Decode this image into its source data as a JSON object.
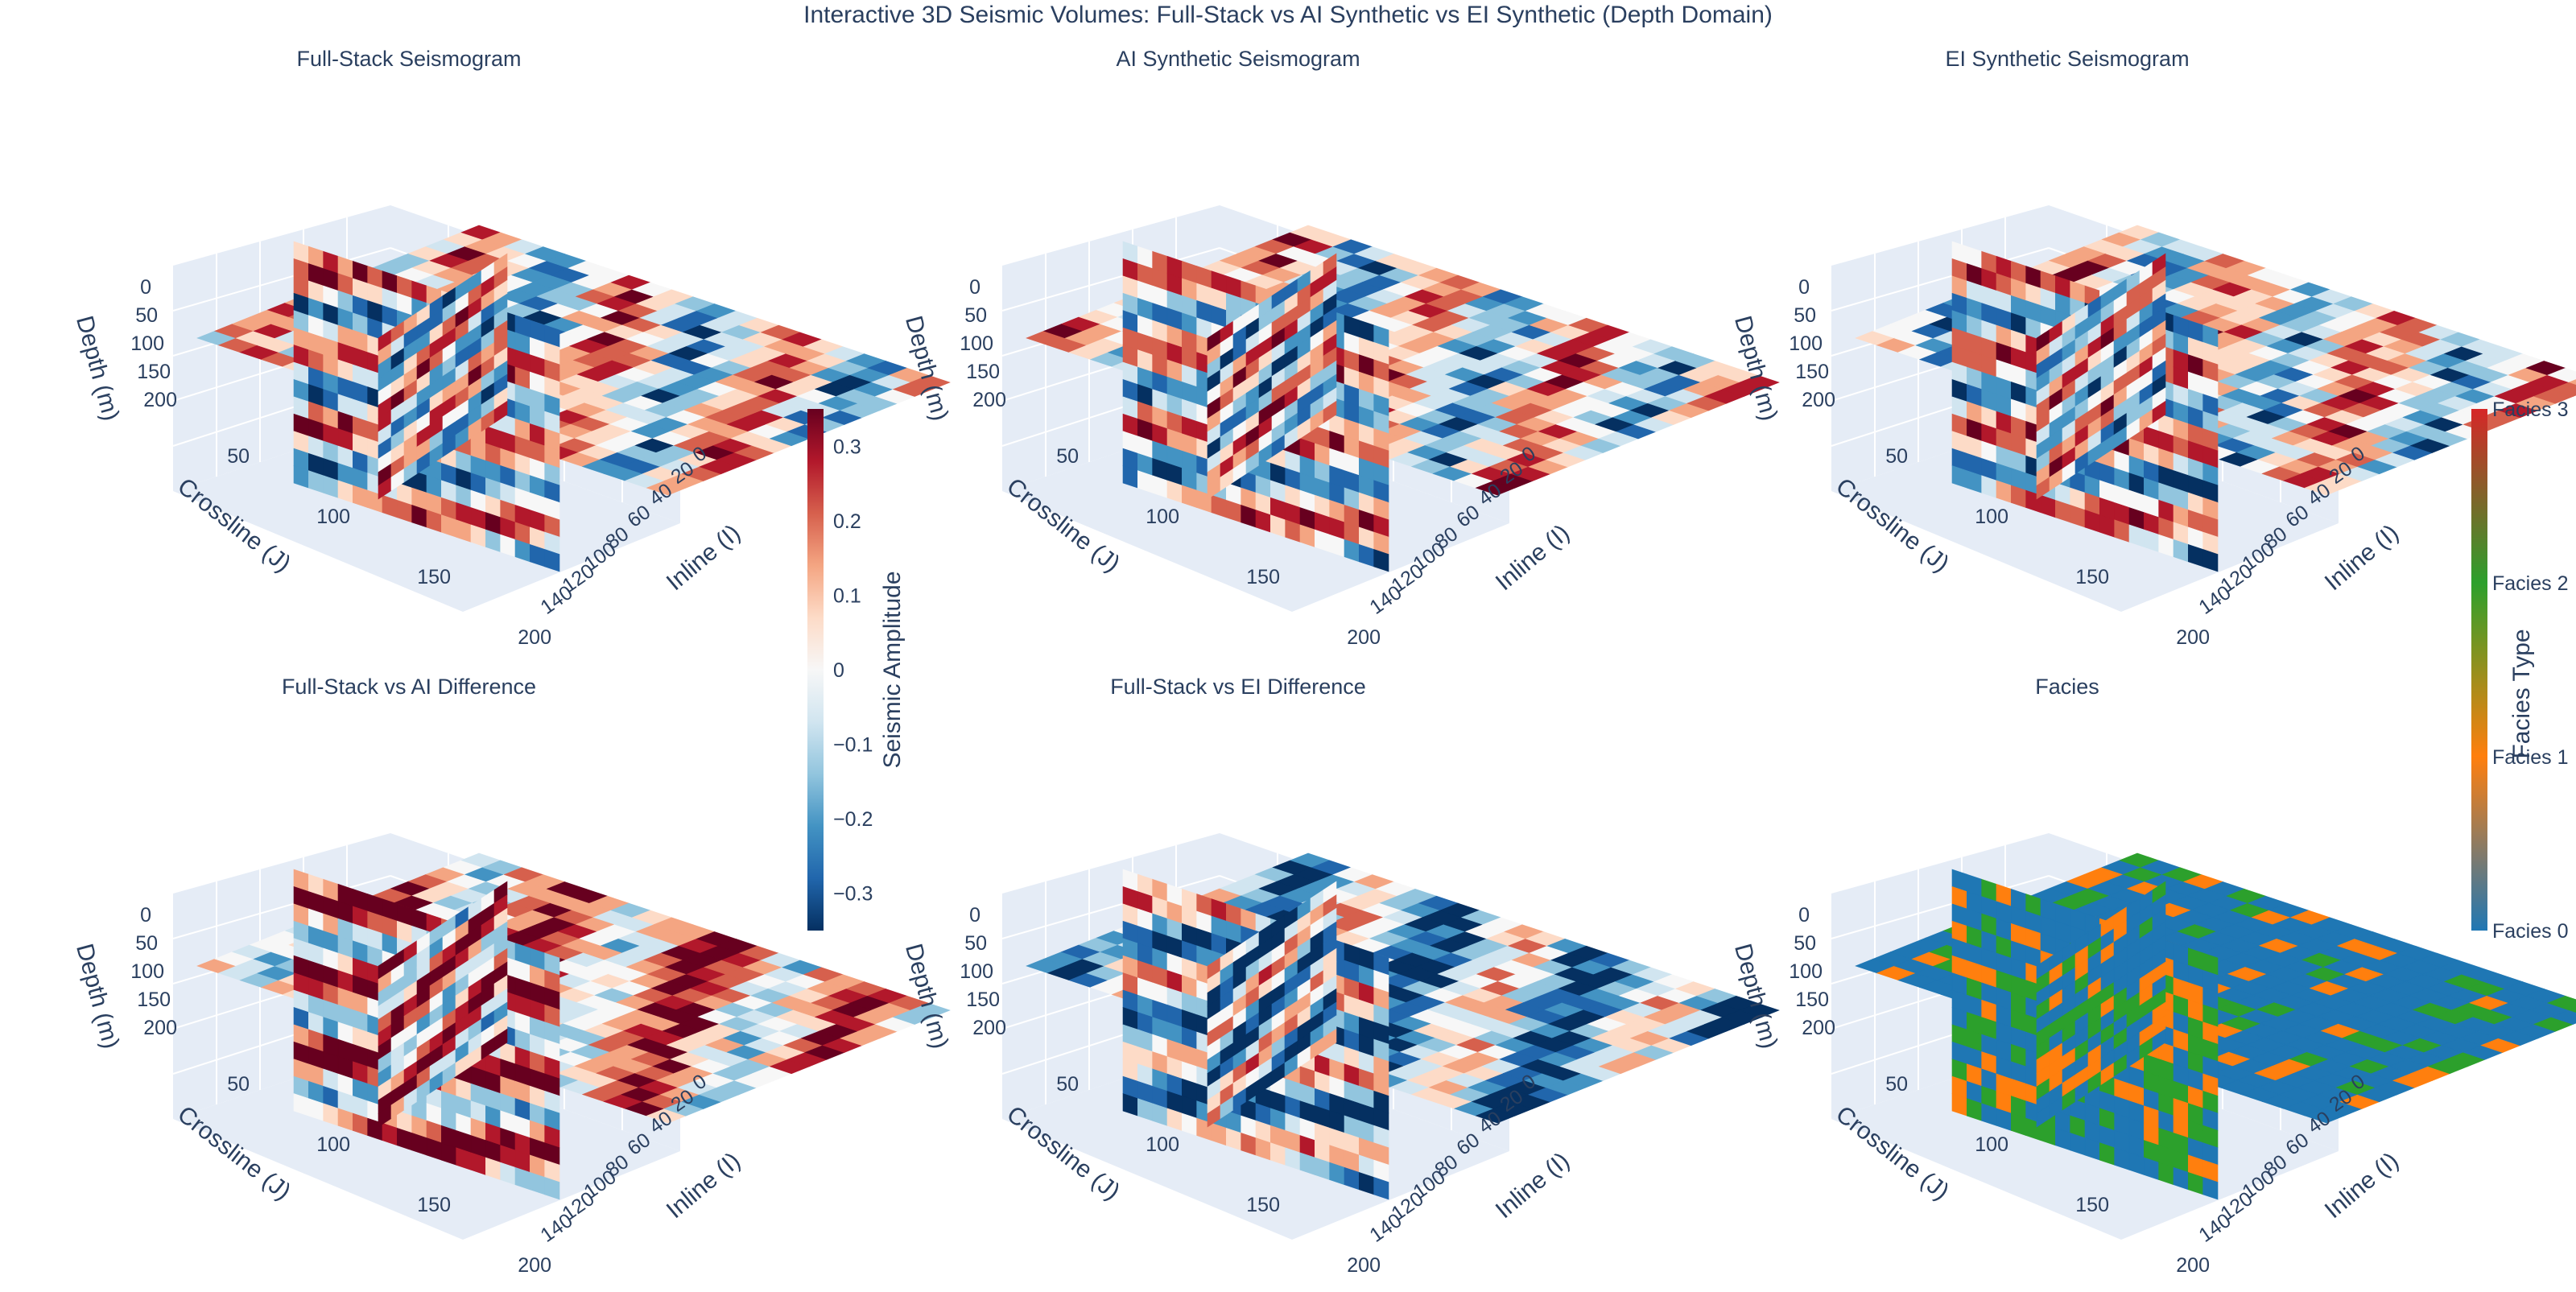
{
  "figure": {
    "title": "Interactive 3D Seismic Volumes: Full-Stack vs AI Synthetic vs EI Synthetic (Depth Domain)"
  },
  "axes": {
    "depth_label": "Depth (m)",
    "crossline_label": "Crossline (J)",
    "inline_label": "Inline (I)",
    "depth_ticks": [
      "0",
      "50",
      "100",
      "150",
      "200"
    ],
    "crossline_ticks": [
      "50",
      "100",
      "150",
      "200"
    ],
    "inline_ticks": [
      "0",
      "20",
      "40",
      "60",
      "80",
      "100",
      "120",
      "140"
    ]
  },
  "colors": {
    "scene_bg": "#e5ecf6",
    "grid": "#ffffff",
    "axis_text": "#2a3f5f",
    "rdbu": [
      "#053061",
      "#2166ac",
      "#4393c3",
      "#92c5de",
      "#d1e5f0",
      "#f7f7f7",
      "#fddbc7",
      "#f4a582",
      "#d6604d",
      "#b2182b",
      "#67001f"
    ],
    "facies": [
      "#1f77b4",
      "#ff7f0e",
      "#2ca02c",
      "#d62728"
    ]
  },
  "colorbars": {
    "seismic": {
      "title": "Seismic Amplitude",
      "range": [
        -0.35,
        0.35
      ],
      "ticks": [
        {
          "value": 0.3,
          "label": "0.3"
        },
        {
          "value": 0.2,
          "label": "0.2"
        },
        {
          "value": 0.1,
          "label": "0.1"
        },
        {
          "value": 0,
          "label": "0"
        },
        {
          "value": -0.1,
          "label": "−0.1"
        },
        {
          "value": -0.2,
          "label": "−0.2"
        },
        {
          "value": -0.3,
          "label": "−0.3"
        }
      ]
    },
    "facies": {
      "title": "Facies Type",
      "labels": [
        "Facies 3",
        "Facies 2",
        "Facies 1",
        "Facies 0"
      ]
    }
  },
  "chart_data": [
    {
      "type": "heatmap",
      "panel": "r0c0",
      "title": "Full-Stack Seismogram",
      "variable": "Seismic Amplitude",
      "colormap": "RdBu",
      "value_range": [
        -0.35,
        0.35
      ],
      "x_range": [
        0,
        150
      ],
      "y_range": [
        0,
        200
      ],
      "z_range": [
        0,
        200
      ]
    },
    {
      "type": "heatmap",
      "panel": "r0c1",
      "title": "AI Synthetic Seismogram",
      "variable": "Seismic Amplitude",
      "colormap": "RdBu",
      "value_range": [
        -0.35,
        0.35
      ],
      "x_range": [
        0,
        150
      ],
      "y_range": [
        0,
        200
      ],
      "z_range": [
        0,
        200
      ]
    },
    {
      "type": "heatmap",
      "panel": "r0c2",
      "title": "EI Synthetic Seismogram",
      "variable": "Seismic Amplitude",
      "colormap": "RdBu",
      "value_range": [
        -0.35,
        0.35
      ],
      "x_range": [
        0,
        150
      ],
      "y_range": [
        0,
        200
      ],
      "z_range": [
        0,
        200
      ]
    },
    {
      "type": "heatmap",
      "panel": "r1c0",
      "title": "Full-Stack vs AI Difference",
      "variable": "Seismic Amplitude",
      "colormap": "RdBu",
      "value_range": [
        -0.35,
        0.35
      ],
      "x_range": [
        0,
        150
      ],
      "y_range": [
        0,
        200
      ],
      "z_range": [
        0,
        200
      ]
    },
    {
      "type": "heatmap",
      "panel": "r1c1",
      "title": "Full-Stack vs EI Difference",
      "variable": "Seismic Amplitude",
      "colormap": "RdBu",
      "value_range": [
        -0.35,
        0.35
      ],
      "x_range": [
        0,
        150
      ],
      "y_range": [
        0,
        200
      ],
      "z_range": [
        0,
        200
      ]
    },
    {
      "type": "heatmap",
      "panel": "r1c2",
      "title": "Facies",
      "variable": "Facies Type",
      "colormap": "facies",
      "categories": [
        "Facies 0",
        "Facies 1",
        "Facies 2",
        "Facies 3"
      ],
      "x_range": [
        0,
        150
      ],
      "y_range": [
        0,
        200
      ],
      "z_range": [
        0,
        200
      ]
    }
  ]
}
